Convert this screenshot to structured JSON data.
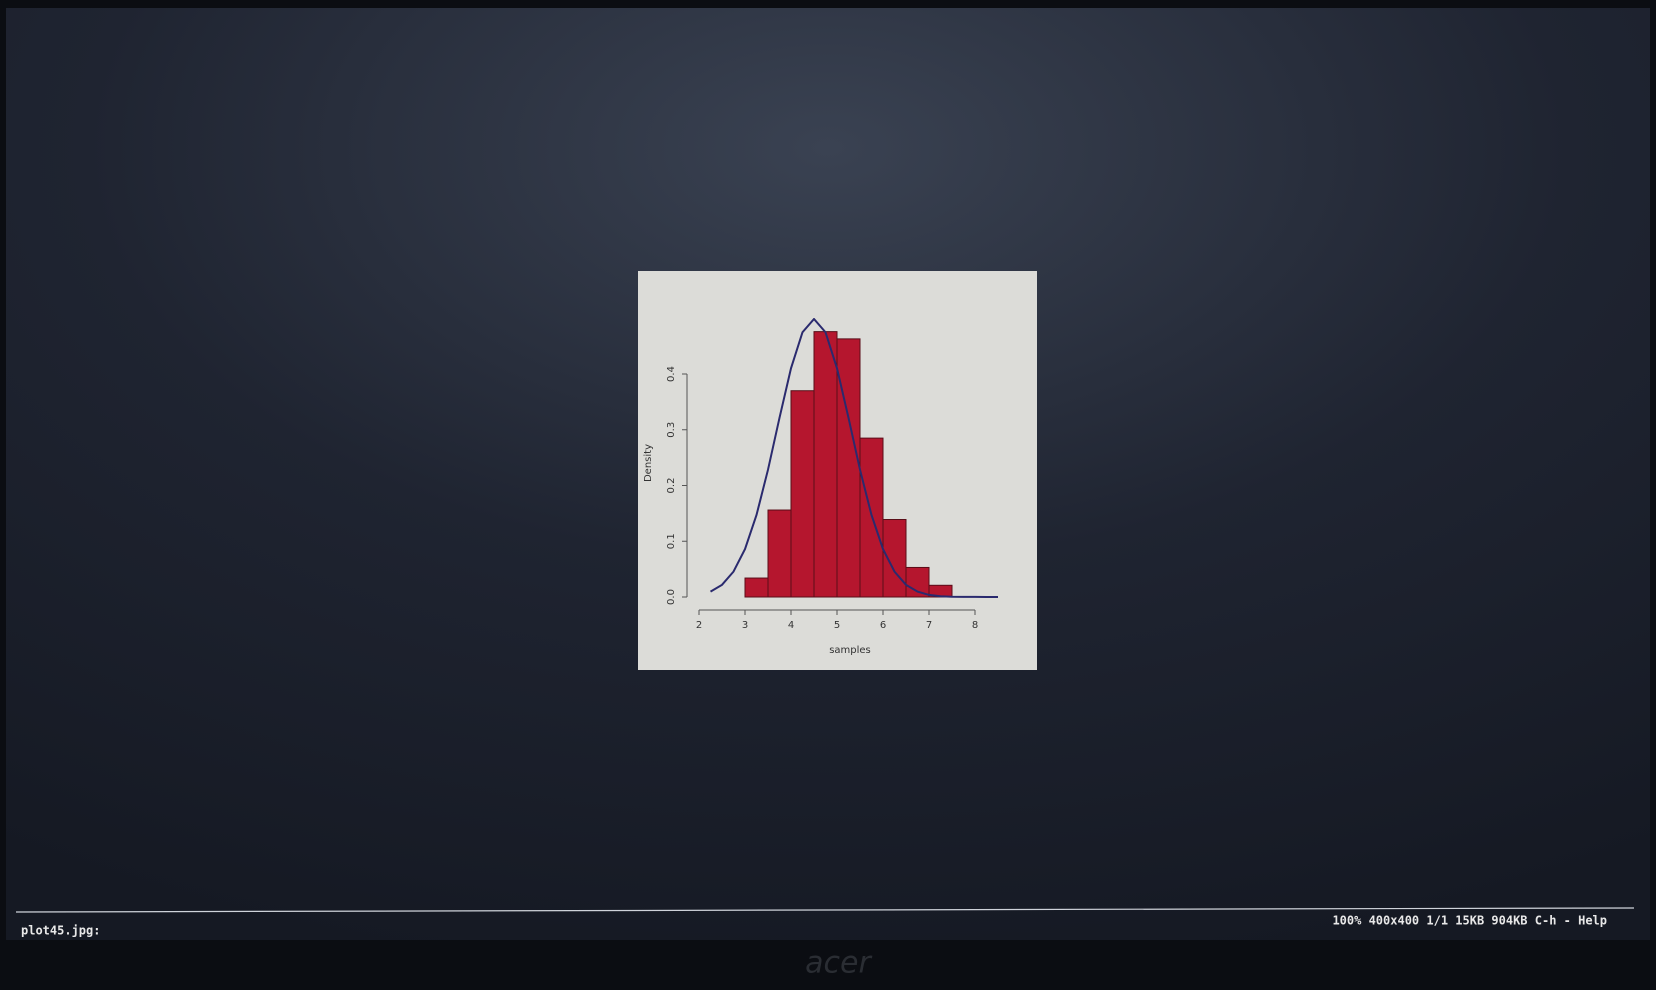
{
  "viewer": {
    "filename": "plot45.jpg:",
    "status": "100% 400x400 1/1 15KB 904KB  C-h - Help"
  },
  "monitor": {
    "brand": "acer"
  },
  "chart_data": {
    "type": "histogram",
    "x_label": "samples",
    "y_label": "Density",
    "bins": [
      3,
      3.5,
      4,
      4.5,
      5,
      5.5,
      6,
      6.5,
      7,
      7.5
    ],
    "values": [
      0.034,
      0.156,
      0.37,
      0.476,
      0.463,
      0.285,
      0.139,
      0.053,
      0.021
    ],
    "color": "#b5162e",
    "curve": {
      "color": "#2a2a6e",
      "x": [
        2.25,
        2.5,
        2.75,
        3,
        3.25,
        3.5,
        3.75,
        4,
        4.25,
        4.5,
        4.75,
        5,
        5.25,
        5.5,
        5.75,
        6,
        6.25,
        6.5,
        6.75,
        7,
        7.25,
        7.5,
        7.75,
        8,
        8.25,
        8.5
      ],
      "values": [
        0.0096,
        0.0219,
        0.0456,
        0.086,
        0.1471,
        0.2283,
        0.3214,
        0.4102,
        0.4749,
        0.4987,
        0.4749,
        0.4102,
        0.3214,
        0.2283,
        0.1471,
        0.086,
        0.0456,
        0.0219,
        0.0096,
        0.0038,
        0.0014,
        0.0004,
        0.0001,
        0.0001,
        0,
        0
      ]
    },
    "xlim": [
      1.9,
      8.8
    ],
    "xticks": [
      2,
      3,
      4,
      5,
      6,
      7,
      8
    ],
    "ylim": [
      0,
      0.5
    ],
    "yticks": [
      {
        "value": 0,
        "label": "0.0"
      },
      0.1,
      0.2,
      0.3,
      0.4
    ]
  }
}
